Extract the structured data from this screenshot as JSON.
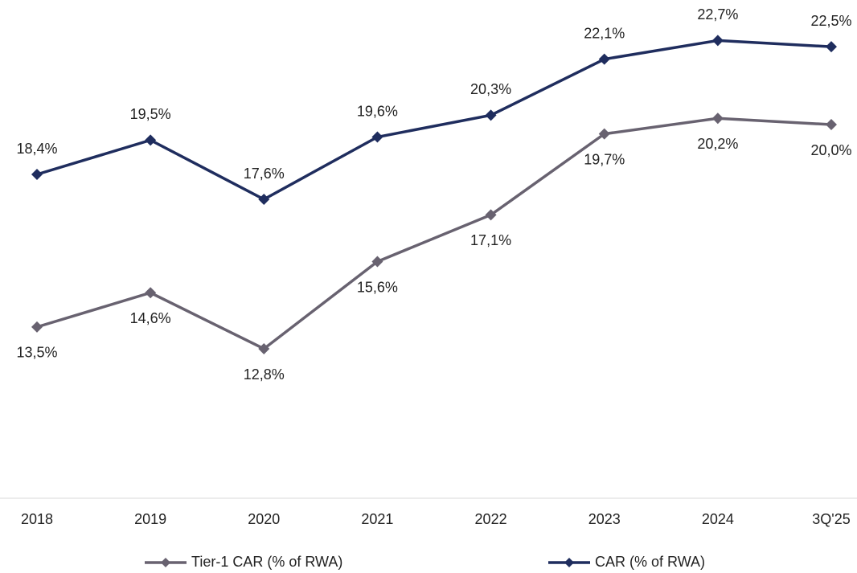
{
  "chart_data": {
    "type": "line",
    "categories": [
      "2018",
      "2019",
      "2020",
      "2021",
      "2022",
      "2023",
      "2024",
      "3Q'25"
    ],
    "series": [
      {
        "name": "Tier-1 CAR (% of RWA)",
        "color": "#686270",
        "values": [
          13.5,
          14.6,
          12.8,
          15.6,
          17.1,
          19.7,
          20.2,
          20.0
        ],
        "value_labels": [
          "13,5%",
          "14,6%",
          "12,8%",
          "15,6%",
          "17,1%",
          "19,7%",
          "20,2%",
          "20,0%"
        ]
      },
      {
        "name": "CAR (% of RWA)",
        "color": "#1f2d5e",
        "values": [
          18.4,
          19.5,
          17.6,
          19.6,
          20.3,
          22.1,
          22.7,
          22.5
        ],
        "value_labels": [
          "18,4%",
          "19,5%",
          "17,6%",
          "19,6%",
          "20,3%",
          "22,1%",
          "22,7%",
          "22,5%"
        ]
      }
    ],
    "ylim": [
      8,
      24
    ],
    "legend": "bottom"
  }
}
